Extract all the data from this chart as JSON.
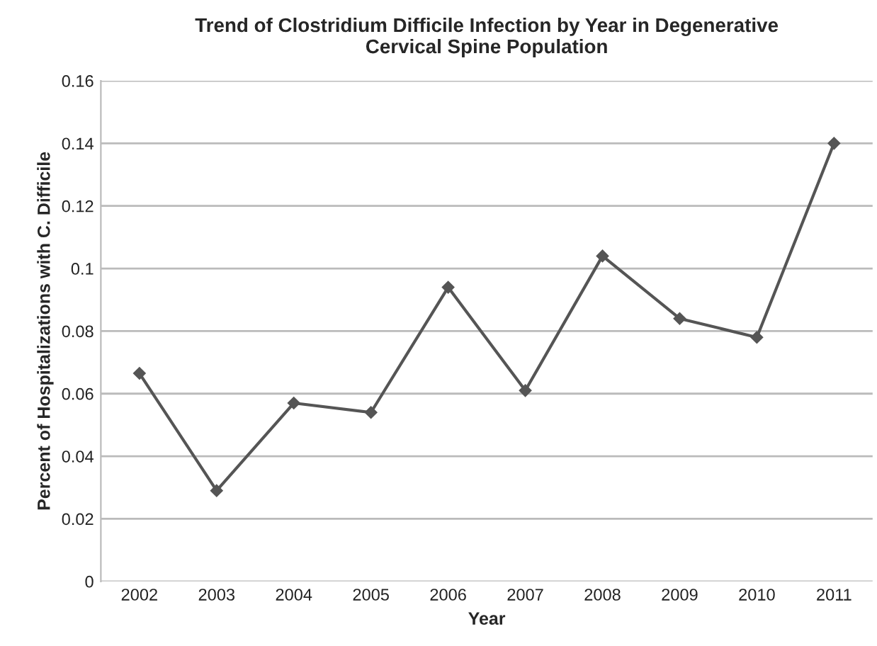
{
  "chart_data": {
    "type": "line",
    "title": "Trend of Clostridium Difficile Infection by Year in Degenerative\nCervical Spine Population",
    "xlabel": "Year",
    "ylabel": "Percent of Hospitalizations with C. Difficile",
    "categories": [
      "2002",
      "2003",
      "2004",
      "2005",
      "2006",
      "2007",
      "2008",
      "2009",
      "2010",
      "2011"
    ],
    "series": [
      {
        "color": "#555555",
        "values": [
          0.0665,
          0.029,
          0.057,
          0.054,
          0.094,
          0.061,
          0.104,
          0.084,
          0.078,
          0.14
        ]
      }
    ],
    "ylim": [
      0,
      0.16
    ],
    "yticks": [
      0,
      0.02,
      0.04,
      0.06,
      0.08,
      {
        "value": 0.1,
        "label": "0.1"
      },
      0.12,
      0.14,
      0.16
    ],
    "grid": "y",
    "marker": "diamond",
    "line_style": "solid"
  }
}
